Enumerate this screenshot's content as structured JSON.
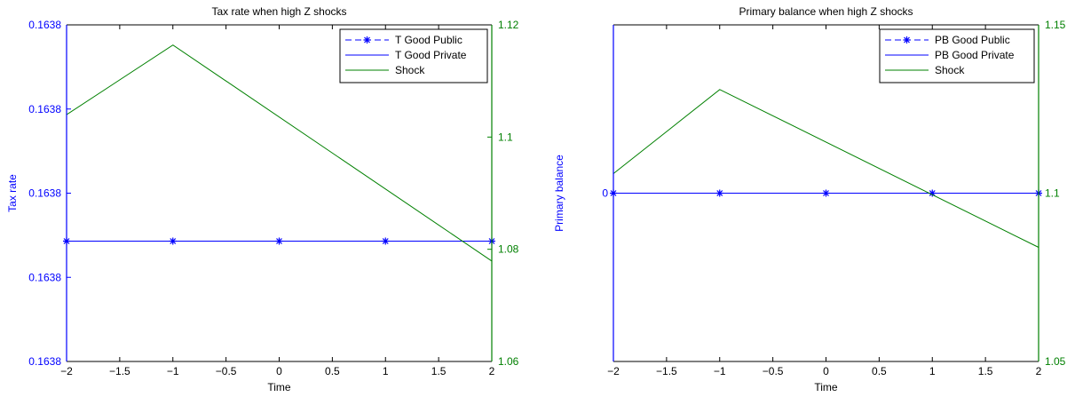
{
  "chart_data": [
    {
      "type": "line",
      "title": "Tax rate when high Z shocks",
      "xlabel": "Time",
      "ylabel_left": "Tax rate",
      "ylabel_right": "",
      "x_ticks": [
        "−2",
        "−1.5",
        "−1",
        "−0.5",
        "0",
        "0.5",
        "1",
        "1.5",
        "2"
      ],
      "x_tick_values": [
        -2,
        -1.5,
        -1,
        -0.5,
        0,
        0.5,
        1,
        1.5,
        2
      ],
      "xlim": [
        -2,
        2
      ],
      "left_ticks": [
        "0.1638",
        "0.1638",
        "0.1638",
        "0.1638",
        "0.1638"
      ],
      "left_tick_values": [
        0,
        1,
        2,
        3,
        4
      ],
      "ylim_left": [
        0,
        4
      ],
      "right_ticks": [
        "1.06",
        "1.08",
        "1.1",
        "1.12"
      ],
      "right_tick_values": [
        1.06,
        1.08,
        1.1,
        1.12
      ],
      "ylim_right": [
        1.06,
        1.12
      ],
      "legend_position": "top-right",
      "series": [
        {
          "name": "T Good Public",
          "axis": "left",
          "style": "dashed-star",
          "color": "#0000ff",
          "x": [
            -2,
            -1,
            0,
            1,
            2
          ],
          "y": [
            1.43,
            1.43,
            1.43,
            1.43,
            1.43
          ]
        },
        {
          "name": "T Good Private",
          "axis": "left",
          "style": "solid",
          "color": "#0000ff",
          "x": [
            -2,
            -1,
            0,
            1,
            2
          ],
          "y": [
            1.43,
            1.43,
            1.43,
            1.43,
            1.43
          ]
        },
        {
          "name": "Shock",
          "axis": "right",
          "style": "solid",
          "color": "#008000",
          "x": [
            -2,
            -1,
            2
          ],
          "y": [
            1.104,
            1.1164,
            1.0779
          ]
        }
      ]
    },
    {
      "type": "line",
      "title": "Primary balance when high Z shocks",
      "xlabel": "Time",
      "ylabel_left": "Primary balance",
      "ylabel_right": "",
      "x_ticks": [
        "−2",
        "−1.5",
        "−1",
        "−0.5",
        "0",
        "0.5",
        "1",
        "1.5",
        "2"
      ],
      "x_tick_values": [
        -2,
        -1.5,
        -1,
        -0.5,
        0,
        0.5,
        1,
        1.5,
        2
      ],
      "xlim": [
        -2,
        2
      ],
      "left_ticks": [
        "0"
      ],
      "left_tick_values": [
        0
      ],
      "ylim_left": [
        -1,
        1
      ],
      "right_ticks": [
        "1.05",
        "1.1",
        "1.15"
      ],
      "right_tick_values": [
        1.05,
        1.1,
        1.15
      ],
      "ylim_right": [
        1.05,
        1.15
      ],
      "legend_position": "top-right",
      "series": [
        {
          "name": "PB Good Public",
          "axis": "left",
          "style": "dashed-star",
          "color": "#0000ff",
          "x": [
            -2,
            -1,
            0,
            1,
            2
          ],
          "y": [
            0,
            0,
            0,
            0,
            0
          ]
        },
        {
          "name": "PB Good Private",
          "axis": "left",
          "style": "solid",
          "color": "#0000ff",
          "x": [
            -2,
            -1,
            0,
            1,
            2
          ],
          "y": [
            0,
            0,
            0,
            0,
            0
          ]
        },
        {
          "name": "Shock",
          "axis": "right",
          "style": "solid",
          "color": "#008000",
          "x": [
            -2,
            -1,
            2
          ],
          "y": [
            1.1058,
            1.1308,
            1.0839
          ]
        }
      ]
    }
  ],
  "colors": {
    "left_axis": "#0000ff",
    "right_axis": "#008000",
    "frame": "#000000"
  }
}
